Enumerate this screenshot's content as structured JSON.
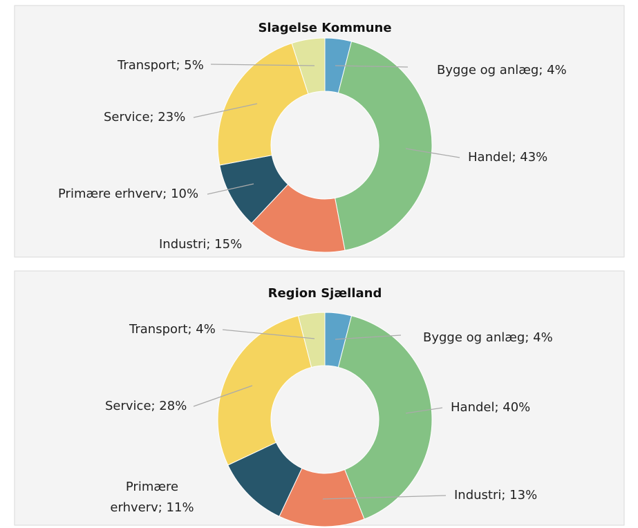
{
  "chart_data": [
    {
      "type": "donut",
      "title": "Slagelse Kommune",
      "values": [
        4,
        43,
        15,
        10,
        23,
        5
      ],
      "value_labels": [
        "Bygge og anlæg; 4%",
        "Handel; 43%",
        "Industri; 15%",
        "Primære erhverv; 10%",
        "Service; 23%",
        "Transport; 5%"
      ],
      "colors": [
        "#5ba3c9",
        "#84c284",
        "#ec8260",
        "#27566b",
        "#f5d45e",
        "#e1e59e"
      ]
    },
    {
      "type": "donut",
      "title": "Region Sjælland",
      "values": [
        4,
        40,
        13,
        11,
        28,
        4
      ],
      "value_labels": [
        "Bygge og anlæg; 4%",
        "Handel; 40%",
        "Industri; 13%",
        "Primære erhverv; 11%",
        "Service; 28%",
        "Transport; 4%"
      ],
      "colors": [
        "#5ba3c9",
        "#84c284",
        "#ec8260",
        "#27566b",
        "#f5d45e",
        "#e1e59e"
      ]
    }
  ]
}
